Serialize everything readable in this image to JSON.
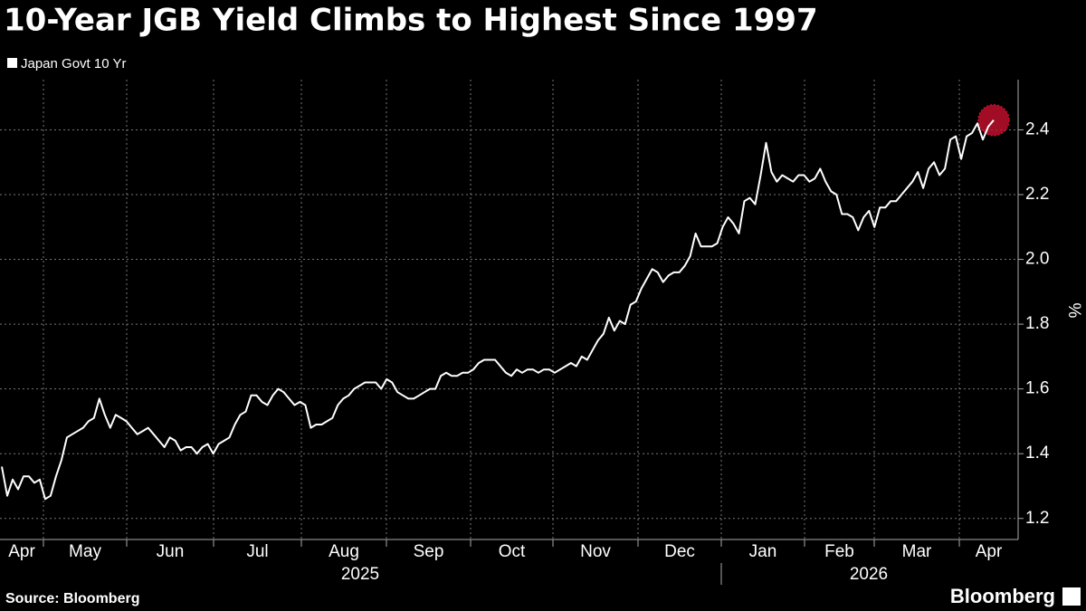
{
  "chart_data": {
    "type": "line",
    "title": "10-Year JGB Yield Climbs to Highest Since 1997",
    "y_label": "%",
    "source": "Source: Bloomberg",
    "brand": "Bloomberg",
    "months": [
      "Apr",
      "May",
      "Jun",
      "Jul",
      "Aug",
      "Sep",
      "Oct",
      "Nov",
      "Dec",
      "Jan",
      "Feb",
      "Mar",
      "Apr"
    ],
    "years": [
      "2025",
      "2026"
    ],
    "ylim": [
      1.135,
      2.555
    ],
    "yticks": [
      1.2,
      1.4,
      1.6,
      1.8,
      {
        "value": 2,
        "label": "2.0"
      },
      2.2,
      2.4
    ],
    "grid": true,
    "series": [
      {
        "name": "Japan Govt 10 Yr",
        "color": "#ffffff",
        "highlight_color": "#c8102e",
        "values": [
          1.36,
          1.27,
          1.32,
          1.29,
          1.33,
          1.33,
          1.31,
          1.32,
          1.26,
          1.27,
          1.33,
          1.38,
          1.45,
          1.46,
          1.47,
          1.48,
          1.5,
          1.51,
          1.57,
          1.52,
          1.48,
          1.52,
          1.51,
          1.5,
          1.48,
          1.46,
          1.47,
          1.48,
          1.46,
          1.44,
          1.42,
          1.45,
          1.44,
          1.41,
          1.42,
          1.42,
          1.4,
          1.42,
          1.43,
          1.4,
          1.43,
          1.44,
          1.45,
          1.49,
          1.52,
          1.53,
          1.58,
          1.58,
          1.56,
          1.55,
          1.58,
          1.6,
          1.59,
          1.57,
          1.55,
          1.56,
          1.55,
          1.48,
          1.49,
          1.49,
          1.5,
          1.51,
          1.55,
          1.57,
          1.58,
          1.6,
          1.61,
          1.62,
          1.62,
          1.62,
          1.6,
          1.63,
          1.62,
          1.59,
          1.58,
          1.57,
          1.57,
          1.58,
          1.59,
          1.6,
          1.6,
          1.64,
          1.65,
          1.64,
          1.64,
          1.65,
          1.65,
          1.66,
          1.68,
          1.69,
          1.69,
          1.69,
          1.67,
          1.65,
          1.64,
          1.66,
          1.65,
          1.66,
          1.66,
          1.65,
          1.66,
          1.66,
          1.65,
          1.66,
          1.67,
          1.68,
          1.67,
          1.7,
          1.69,
          1.72,
          1.75,
          1.77,
          1.82,
          1.78,
          1.81,
          1.8,
          1.86,
          1.87,
          1.91,
          1.94,
          1.97,
          1.96,
          1.93,
          1.95,
          1.96,
          1.96,
          1.98,
          2.01,
          2.08,
          2.04,
          2.04,
          2.04,
          2.05,
          2.1,
          2.13,
          2.11,
          2.08,
          2.18,
          2.19,
          2.17,
          2.26,
          2.36,
          2.27,
          2.24,
          2.26,
          2.25,
          2.24,
          2.26,
          2.26,
          2.24,
          2.25,
          2.28,
          2.24,
          2.21,
          2.2,
          2.14,
          2.14,
          2.13,
          2.09,
          2.13,
          2.15,
          2.1,
          2.16,
          2.16,
          2.18,
          2.18,
          2.2,
          2.22,
          2.24,
          2.27,
          2.22,
          2.28,
          2.3,
          2.26,
          2.28,
          2.37,
          2.38,
          2.31,
          2.38,
          2.39,
          2.42,
          2.37,
          2.41,
          2.43
        ]
      }
    ]
  }
}
